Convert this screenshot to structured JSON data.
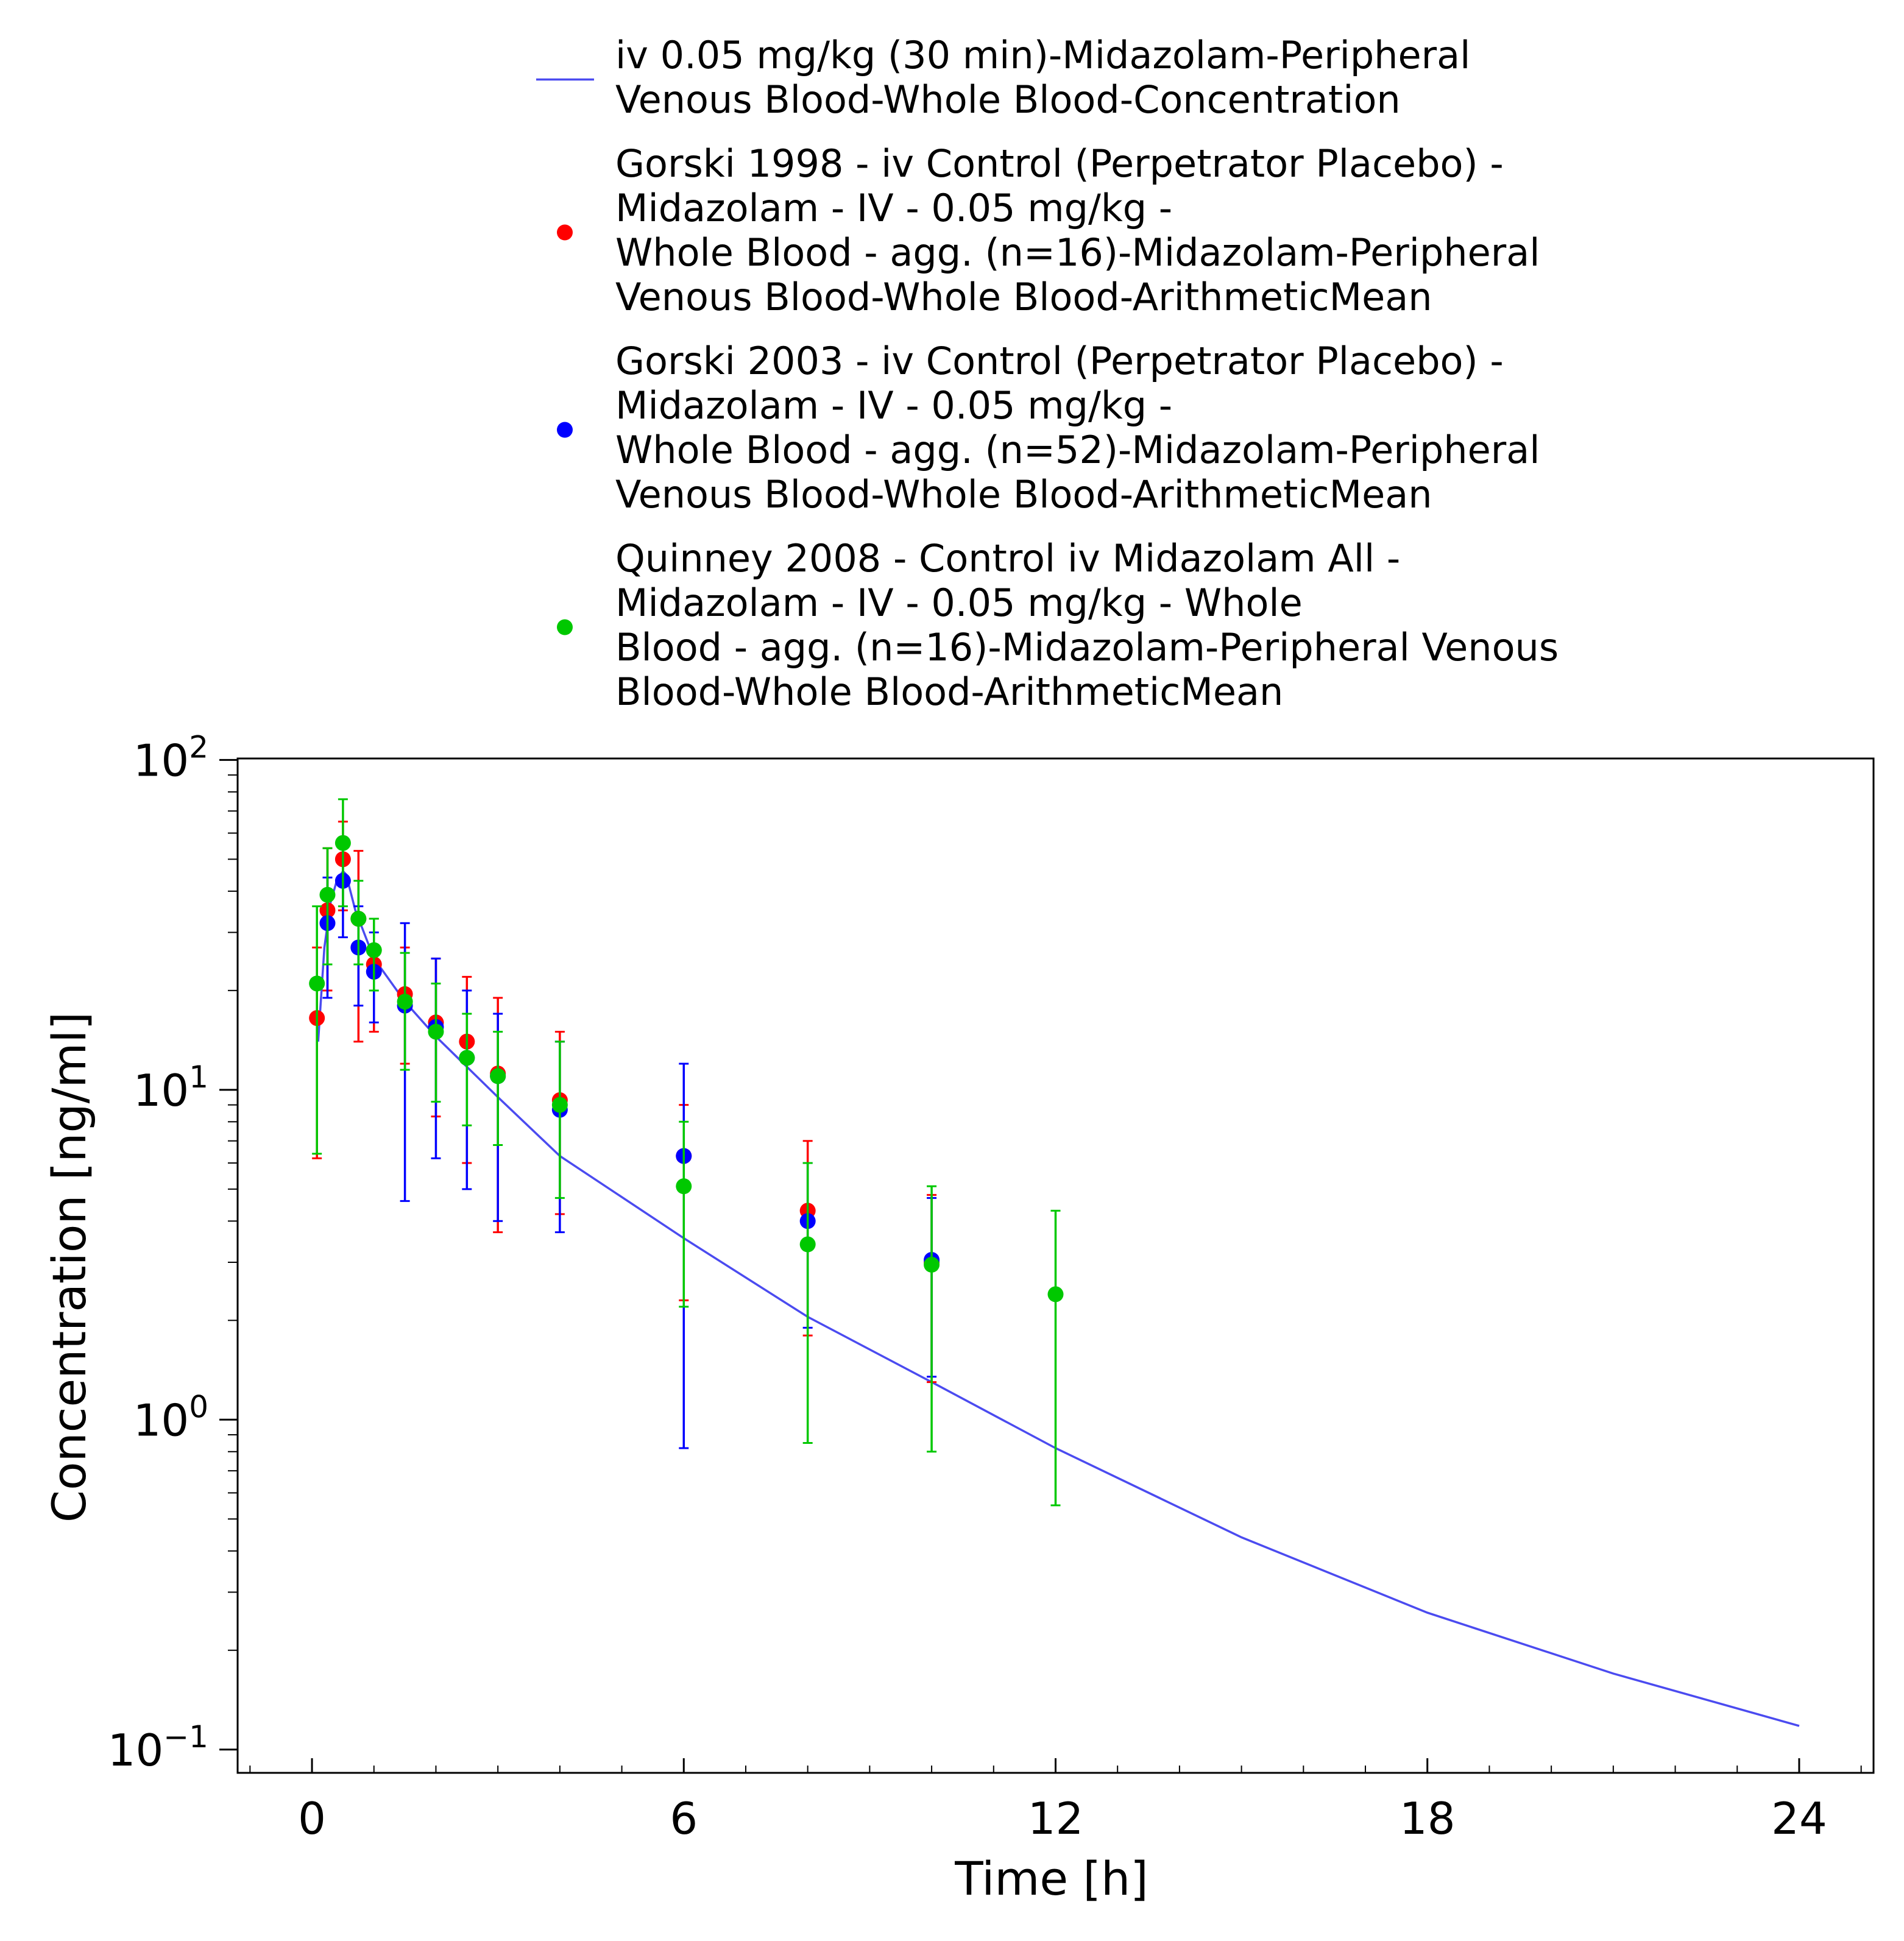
{
  "chart_data": {
    "type": "scatter",
    "xlabel": "Time [h]",
    "ylabel": "Concentration [ng/ml]",
    "x_scale": "linear",
    "y_scale": "log",
    "xlim": [
      -1.2,
      25.2
    ],
    "ylim": [
      0.085,
      101
    ],
    "x_ticks": [
      0,
      6,
      12,
      18,
      24
    ],
    "x_tick_labels": [
      "0",
      "6",
      "12",
      "18",
      "24"
    ],
    "y_ticks": [
      0.1,
      1,
      10,
      100
    ],
    "y_tick_labels": [
      {
        "base": "10",
        "exp": "−1"
      },
      {
        "base": "10",
        "exp": "0"
      },
      {
        "base": "10",
        "exp": "1"
      },
      {
        "base": "10",
        "exp": "2"
      }
    ],
    "grid": false,
    "legend_position": "top",
    "series": [
      {
        "kind": "line",
        "color": "#4b4bf0",
        "legend": [
          "iv 0.05 mg/kg (30 min)-Midazolam-Peripheral",
          "Venous Blood-Whole Blood-Concentration"
        ],
        "x": [
          0,
          0.1,
          0.2,
          0.3,
          0.4,
          0.5,
          0.55,
          0.7,
          1.0,
          1.5,
          2.0,
          3.0,
          4.0,
          6.0,
          8.0,
          10.0,
          12.0,
          15.0,
          18.0,
          21.0,
          24.0
        ],
        "y": [
          0,
          14,
          27,
          37,
          43,
          46,
          45,
          35,
          25,
          18.5,
          14.5,
          9.5,
          6.3,
          3.55,
          2.05,
          1.3,
          0.82,
          0.44,
          0.26,
          0.17,
          0.118
        ]
      },
      {
        "kind": "points",
        "color": "#ff0000",
        "legend": [
          "Gorski 1998 - iv Control (Perpetrator Placebo) -",
          "Midazolam - IV - 0.05 mg/kg -",
          "Whole Blood - agg. (n=16)-Midazolam-Peripheral",
          "Venous Blood-Whole Blood-ArithmeticMean"
        ],
        "x": [
          0.08,
          0.25,
          0.5,
          0.75,
          1.0,
          1.5,
          2.0,
          2.5,
          3.0,
          4.0,
          6.0,
          8.0,
          10.0
        ],
        "y": [
          16.5,
          35,
          50,
          33,
          24,
          19.5,
          16,
          14,
          11.2,
          9.3,
          6.3,
          4.3,
          3.0
        ],
        "err_low": [
          6.2,
          20,
          35,
          14,
          15,
          12,
          8.3,
          6,
          3.7,
          4.2,
          2.3,
          1.8,
          1.3
        ],
        "err_high": [
          27,
          54,
          65,
          53,
          33,
          27,
          25,
          22,
          19,
          15,
          9,
          7,
          4.8
        ]
      },
      {
        "kind": "points",
        "color": "#0000ff",
        "legend": [
          "Gorski 2003 - iv Control (Perpetrator Placebo) -",
          "Midazolam - IV - 0.05 mg/kg -",
          "Whole Blood - agg. (n=52)-Midazolam-Peripheral",
          "Venous Blood-Whole Blood-ArithmeticMean"
        ],
        "x": [
          0.25,
          0.5,
          0.75,
          1.0,
          1.5,
          2.0,
          2.5,
          3.0,
          4.0,
          6.0,
          8.0,
          10.0
        ],
        "y": [
          32,
          43,
          27,
          22.8,
          18,
          15.5,
          12.5,
          11,
          8.7,
          6.3,
          4.0,
          3.05
        ],
        "err_low": [
          19,
          29,
          18,
          16,
          4.6,
          6.2,
          5,
          4,
          3.7,
          0.82,
          1.9,
          1.35
        ],
        "err_high": [
          44,
          57,
          36,
          30,
          32,
          25,
          20,
          17,
          14,
          12,
          6,
          4.7
        ]
      },
      {
        "kind": "points",
        "color": "#00c800",
        "legend": [
          "Quinney 2008 - Control iv Midazolam All -",
          "Midazolam - IV - 0.05 mg/kg - Whole",
          "Blood - agg. (n=16)-Midazolam-Peripheral Venous",
          "Blood-Whole Blood-ArithmeticMean"
        ],
        "x": [
          0.08,
          0.25,
          0.5,
          0.75,
          1.0,
          1.5,
          2.0,
          2.5,
          3.0,
          4.0,
          6.0,
          8.0,
          10.0,
          12.0
        ],
        "y": [
          21,
          39,
          56,
          33,
          26.5,
          18.5,
          15,
          12.5,
          11,
          9.0,
          5.1,
          3.4,
          2.95,
          2.4
        ],
        "err_low": [
          6.4,
          24,
          36,
          24,
          20,
          11.5,
          9.2,
          7.8,
          6.8,
          4.7,
          2.2,
          0.85,
          0.8,
          0.55
        ],
        "err_high": [
          36,
          54,
          76,
          43,
          33,
          26,
          21,
          17,
          15,
          14,
          8,
          6,
          5.1,
          4.3
        ]
      }
    ]
  }
}
